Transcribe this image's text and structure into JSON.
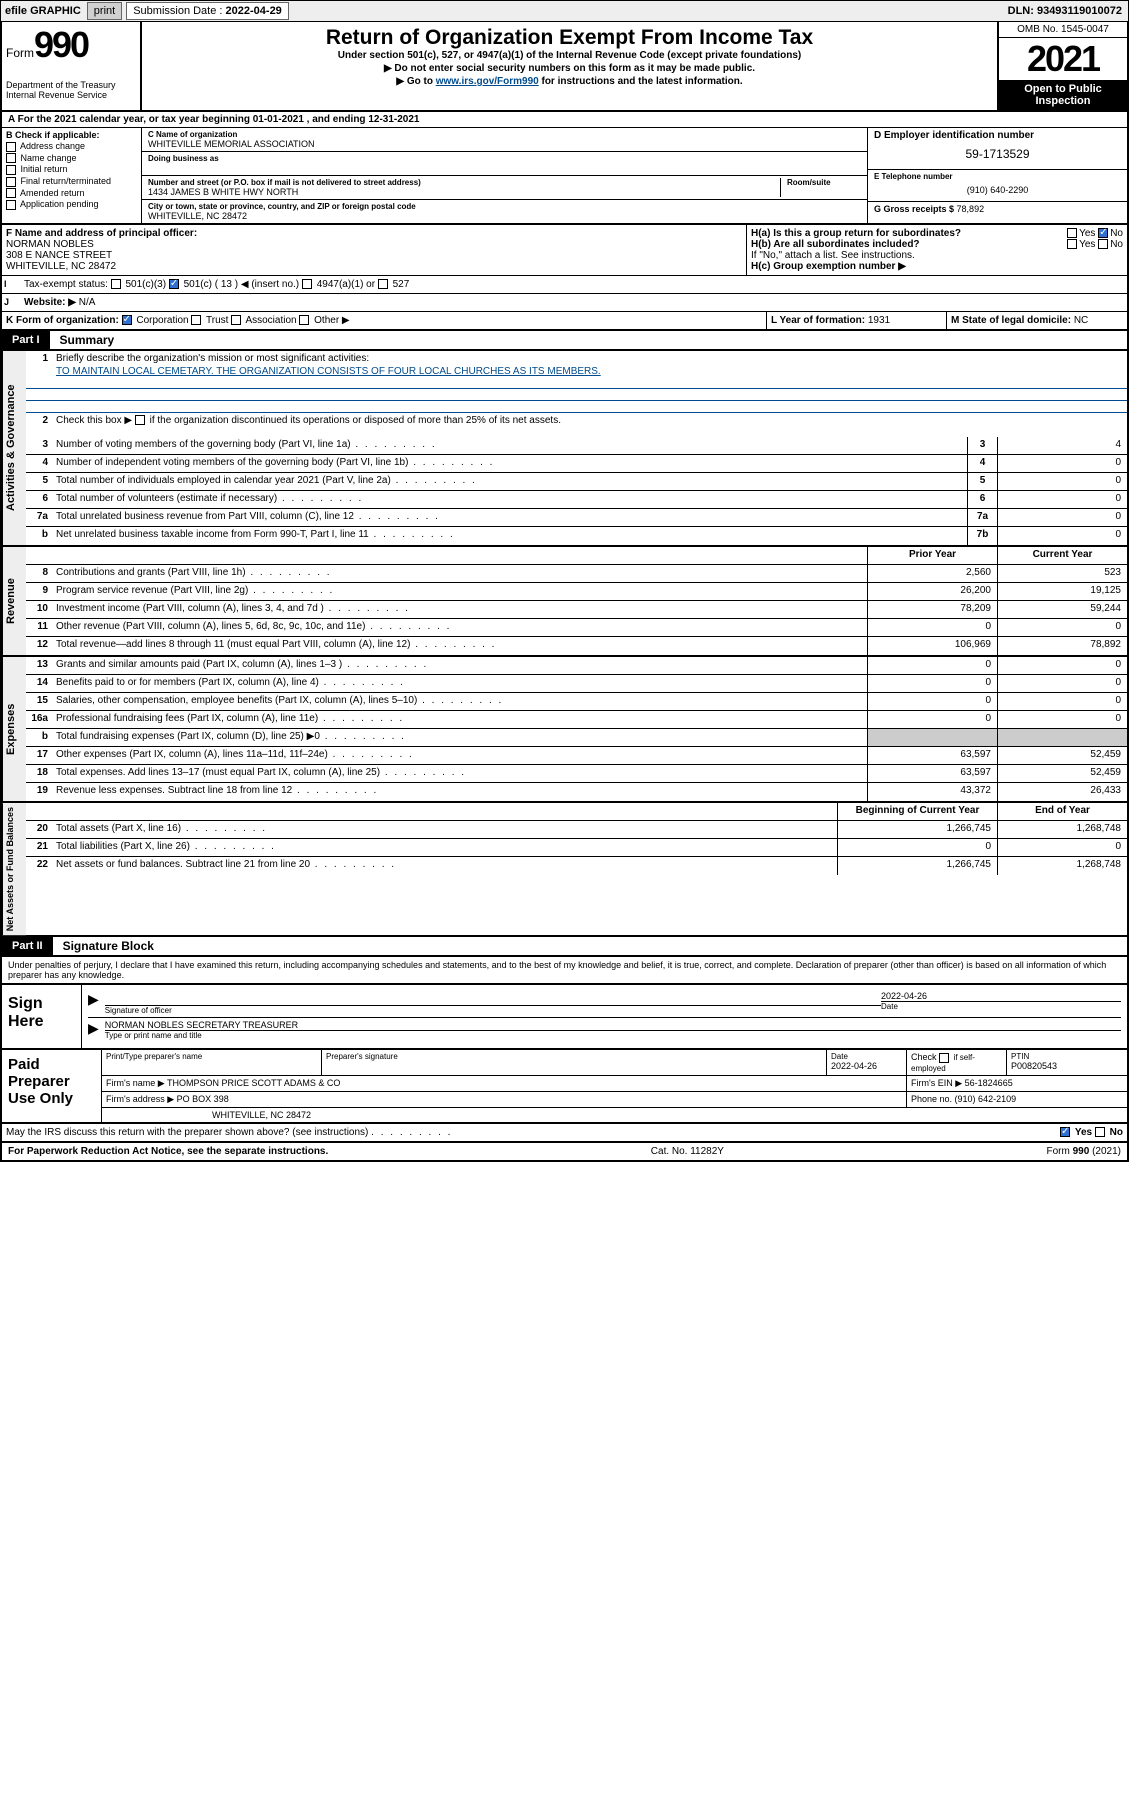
{
  "topbar": {
    "efile": "efile GRAPHIC",
    "print": "print",
    "sub_label": "Submission Date : ",
    "sub_date": "2022-04-29",
    "dln_label": "DLN: ",
    "dln": "93493119010072"
  },
  "hdr": {
    "form_prefix": "Form",
    "form_num": "990",
    "dept": "Department of the Treasury\nInternal Revenue Service",
    "title": "Return of Organization Exempt From Income Tax",
    "subtitle": "Under section 501(c), 527, or 4947(a)(1) of the Internal Revenue Code (except private foundations)",
    "note1": "▶ Do not enter social security numbers on this form as it may be made public.",
    "note2_pre": "▶ Go to ",
    "note2_link": "www.irs.gov/Form990",
    "note2_post": " for instructions and the latest information.",
    "omb": "OMB No. 1545-0047",
    "year": "2021",
    "open": "Open to Public Inspection"
  },
  "lineA": "A For the 2021 calendar year, or tax year beginning 01-01-2021  , and ending 12-31-2021",
  "colB": {
    "hdr": "B Check if applicable:",
    "items": [
      "Address change",
      "Name change",
      "Initial return",
      "Final return/terminated",
      "Amended return",
      "Application pending"
    ]
  },
  "colC": {
    "name_lbl": "C Name of organization",
    "name": "WHITEVILLE MEMORIAL ASSOCIATION",
    "dba_lbl": "Doing business as",
    "street_lbl": "Number and street (or P.O. box if mail is not delivered to street address)",
    "room_lbl": "Room/suite",
    "street": "1434 JAMES B WHITE HWY NORTH",
    "city_lbl": "City or town, state or province, country, and ZIP or foreign postal code",
    "city": "WHITEVILLE, NC  28472"
  },
  "colD": {
    "ein_lbl": "D Employer identification number",
    "ein": "59-1713529",
    "tel_lbl": "E Telephone number",
    "tel": "(910) 640-2290",
    "gross_lbl": "G Gross receipts $ ",
    "gross": "78,892"
  },
  "lineF": {
    "lbl": "F  Name and address of principal officer:",
    "name": "NORMAN NOBLES",
    "addr1": "308 E NANCE STREET",
    "addr2": "WHITEVILLE, NC  28472"
  },
  "lineH": {
    "a": "H(a)  Is this a group return for subordinates?",
    "b": "H(b)  Are all subordinates included?",
    "b_note": "If \"No,\" attach a list. See instructions.",
    "c": "H(c)  Group exemption number ▶",
    "yes": "Yes",
    "no": "No"
  },
  "lineI": {
    "lbl": "Tax-exempt status:",
    "c3": "501(c)(3)",
    "c": "501(c) ( 13 ) ◀ (insert no.)",
    "a1": "4947(a)(1) or",
    "527": "527"
  },
  "lineJ": {
    "lbl": "Website: ▶",
    "val": "N/A"
  },
  "lineK": {
    "lbl": "K Form of organization:",
    "corp": "Corporation",
    "trust": "Trust",
    "assoc": "Association",
    "other": "Other ▶"
  },
  "lineL": {
    "lbl": "L Year of formation: ",
    "val": "1931"
  },
  "lineM": {
    "lbl": "M State of legal domicile: ",
    "val": "NC"
  },
  "part1": {
    "num": "Part I",
    "title": "Summary"
  },
  "vtabs": {
    "gov": "Activities & Governance",
    "rev": "Revenue",
    "exp": "Expenses",
    "net": "Net Assets or Fund Balances"
  },
  "s1": {
    "q": "Briefly describe the organization's mission or most significant activities:",
    "a": "TO MAINTAIN LOCAL CEMETARY. THE ORGANIZATION CONSISTS OF FOUR LOCAL CHURCHES AS ITS MEMBERS."
  },
  "s2": "Check this box ▶      if the organization discontinued its operations or disposed of more than 25% of its net assets.",
  "rows_gov": [
    {
      "n": "3",
      "t": "Number of voting members of the governing body (Part VI, line 1a)",
      "box": "3",
      "v": "4"
    },
    {
      "n": "4",
      "t": "Number of independent voting members of the governing body (Part VI, line 1b)",
      "box": "4",
      "v": "0"
    },
    {
      "n": "5",
      "t": "Total number of individuals employed in calendar year 2021 (Part V, line 2a)",
      "box": "5",
      "v": "0"
    },
    {
      "n": "6",
      "t": "Total number of volunteers (estimate if necessary)",
      "box": "6",
      "v": "0"
    },
    {
      "n": "7a",
      "t": "Total unrelated business revenue from Part VIII, column (C), line 12",
      "box": "7a",
      "v": "0"
    },
    {
      "n": "b",
      "t": "Net unrelated business taxable income from Form 990-T, Part I, line 11",
      "box": "7b",
      "v": "0"
    }
  ],
  "col_hdrs": {
    "prior": "Prior Year",
    "current": "Current Year",
    "boy": "Beginning of Current Year",
    "eoy": "End of Year"
  },
  "rows_rev": [
    {
      "n": "8",
      "t": "Contributions and grants (Part VIII, line 1h)",
      "p": "2,560",
      "c": "523"
    },
    {
      "n": "9",
      "t": "Program service revenue (Part VIII, line 2g)",
      "p": "26,200",
      "c": "19,125"
    },
    {
      "n": "10",
      "t": "Investment income (Part VIII, column (A), lines 3, 4, and 7d )",
      "p": "78,209",
      "c": "59,244"
    },
    {
      "n": "11",
      "t": "Other revenue (Part VIII, column (A), lines 5, 6d, 8c, 9c, 10c, and 11e)",
      "p": "0",
      "c": "0"
    },
    {
      "n": "12",
      "t": "Total revenue—add lines 8 through 11 (must equal Part VIII, column (A), line 12)",
      "p": "106,969",
      "c": "78,892"
    }
  ],
  "rows_exp": [
    {
      "n": "13",
      "t": "Grants and similar amounts paid (Part IX, column (A), lines 1–3 )",
      "p": "0",
      "c": "0"
    },
    {
      "n": "14",
      "t": "Benefits paid to or for members (Part IX, column (A), line 4)",
      "p": "0",
      "c": "0"
    },
    {
      "n": "15",
      "t": "Salaries, other compensation, employee benefits (Part IX, column (A), lines 5–10)",
      "p": "0",
      "c": "0"
    },
    {
      "n": "16a",
      "t": "Professional fundraising fees (Part IX, column (A), line 11e)",
      "p": "0",
      "c": "0"
    },
    {
      "n": "b",
      "t": "Total fundraising expenses (Part IX, column (D), line 25) ▶0",
      "p": "",
      "c": "",
      "shade": true
    },
    {
      "n": "17",
      "t": "Other expenses (Part IX, column (A), lines 11a–11d, 11f–24e)",
      "p": "63,597",
      "c": "52,459"
    },
    {
      "n": "18",
      "t": "Total expenses. Add lines 13–17 (must equal Part IX, column (A), line 25)",
      "p": "63,597",
      "c": "52,459"
    },
    {
      "n": "19",
      "t": "Revenue less expenses. Subtract line 18 from line 12",
      "p": "43,372",
      "c": "26,433"
    }
  ],
  "rows_net": [
    {
      "n": "20",
      "t": "Total assets (Part X, line 16)",
      "p": "1,266,745",
      "c": "1,268,748"
    },
    {
      "n": "21",
      "t": "Total liabilities (Part X, line 26)",
      "p": "0",
      "c": "0"
    },
    {
      "n": "22",
      "t": "Net assets or fund balances. Subtract line 21 from line 20",
      "p": "1,266,745",
      "c": "1,268,748"
    }
  ],
  "part2": {
    "num": "Part II",
    "title": "Signature Block"
  },
  "sig_intro": "Under penalties of perjury, I declare that I have examined this return, including accompanying schedules and statements, and to the best of my knowledge and belief, it is true, correct, and complete. Declaration of preparer (other than officer) is based on all information of which preparer has any knowledge.",
  "sign": {
    "left": "Sign Here",
    "sig_lbl": "Signature of officer",
    "date_lbl": "Date",
    "date": "2022-04-26",
    "name": "NORMAN NOBLES  SECRETARY TREASURER",
    "name_lbl": "Type or print name and title"
  },
  "prep": {
    "left": "Paid Preparer Use Only",
    "h1": "Print/Type preparer's name",
    "h2": "Preparer's signature",
    "h3_lbl": "Date",
    "h3": "2022-04-26",
    "h4_lbl": "Check",
    "h4_sub": "if self-employed",
    "h5_lbl": "PTIN",
    "h5": "P00820543",
    "firm_lbl": "Firm's name    ▶",
    "firm": "THOMPSON PRICE SCOTT ADAMS & CO",
    "ein_lbl": "Firm's EIN ▶",
    "ein": "56-1824665",
    "addr_lbl": "Firm's address ▶",
    "addr1": "PO BOX 398",
    "addr2": "WHITEVILLE, NC  28472",
    "phone_lbl": "Phone no. ",
    "phone": "(910) 642-2109"
  },
  "discuss": "May the IRS discuss this return with the preparer shown above? (see instructions)",
  "footer": {
    "left": "For Paperwork Reduction Act Notice, see the separate instructions.",
    "mid": "Cat. No. 11282Y",
    "right": "Form 990 (2021)"
  },
  "colors": {
    "link": "#004b8d",
    "check_bg": "#3070d0",
    "shade": "#cccccc"
  }
}
